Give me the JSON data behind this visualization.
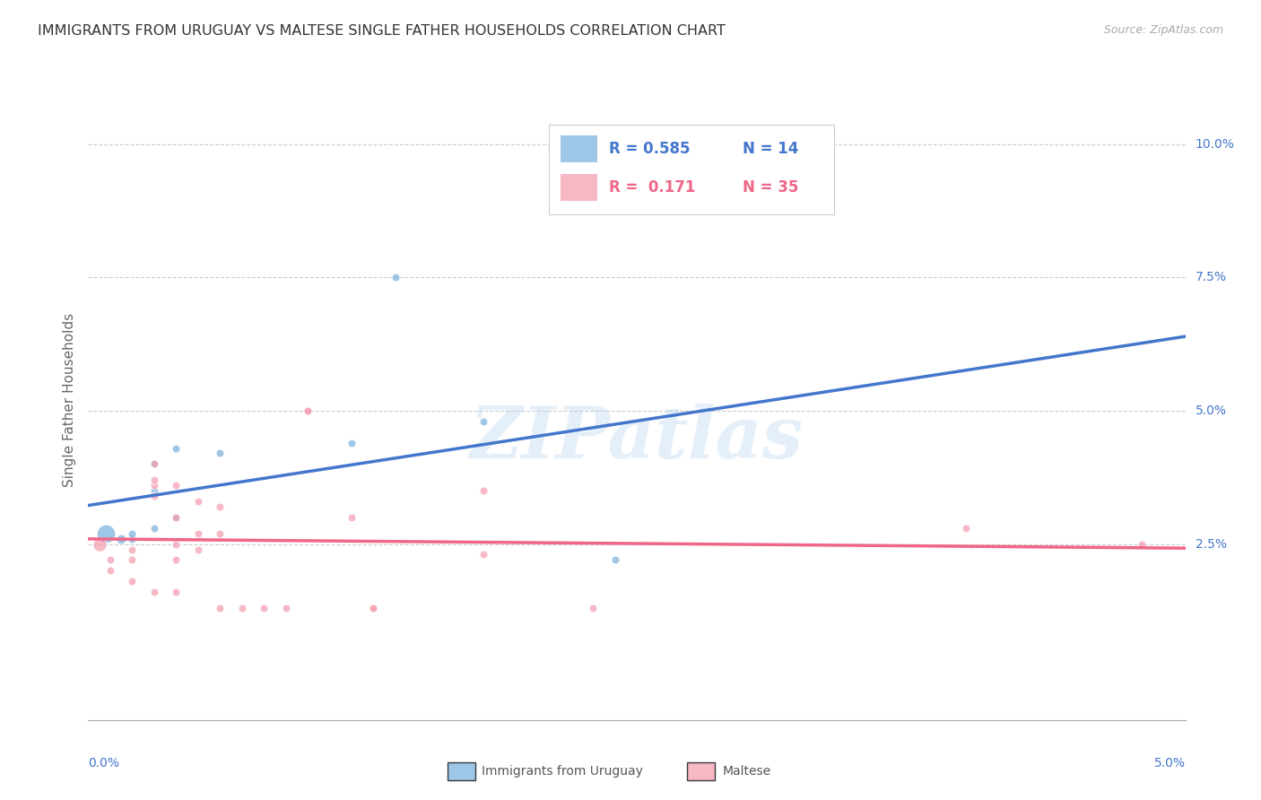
{
  "title": "IMMIGRANTS FROM URUGUAY VS MALTESE SINGLE FATHER HOUSEHOLDS CORRELATION CHART",
  "source": "Source: ZipAtlas.com",
  "ylabel": "Single Father Households",
  "legend_blue_r": "0.585",
  "legend_blue_n": "14",
  "legend_pink_r": "0.171",
  "legend_pink_n": "35",
  "watermark": "ZIPatlas",
  "blue_color": "#7EB3E0",
  "pink_color": "#F4A0B0",
  "blue_line_color": "#4477CC",
  "pink_line_color": "#EE6688",
  "dashed_line_color": "#BBDDEE",
  "blue_points": [
    [
      0.0008,
      0.027,
      220
    ],
    [
      0.0015,
      0.026,
      60
    ],
    [
      0.002,
      0.026,
      40
    ],
    [
      0.002,
      0.027,
      40
    ],
    [
      0.003,
      0.028,
      40
    ],
    [
      0.003,
      0.035,
      40
    ],
    [
      0.003,
      0.04,
      40
    ],
    [
      0.004,
      0.043,
      40
    ],
    [
      0.004,
      0.03,
      40
    ],
    [
      0.006,
      0.042,
      40
    ],
    [
      0.012,
      0.044,
      40
    ],
    [
      0.014,
      0.075,
      40
    ],
    [
      0.018,
      0.048,
      40
    ],
    [
      0.024,
      0.022,
      40
    ]
  ],
  "pink_points": [
    [
      0.0005,
      0.025,
      120
    ],
    [
      0.001,
      0.022,
      40
    ],
    [
      0.001,
      0.02,
      40
    ],
    [
      0.002,
      0.024,
      40
    ],
    [
      0.002,
      0.022,
      40
    ],
    [
      0.002,
      0.018,
      40
    ],
    [
      0.003,
      0.036,
      40
    ],
    [
      0.003,
      0.034,
      40
    ],
    [
      0.003,
      0.04,
      40
    ],
    [
      0.003,
      0.037,
      40
    ],
    [
      0.003,
      0.016,
      40
    ],
    [
      0.004,
      0.036,
      40
    ],
    [
      0.004,
      0.03,
      40
    ],
    [
      0.004,
      0.016,
      40
    ],
    [
      0.004,
      0.025,
      40
    ],
    [
      0.004,
      0.022,
      40
    ],
    [
      0.005,
      0.027,
      40
    ],
    [
      0.005,
      0.024,
      40
    ],
    [
      0.005,
      0.033,
      40
    ],
    [
      0.006,
      0.032,
      40
    ],
    [
      0.006,
      0.027,
      40
    ],
    [
      0.006,
      0.013,
      40
    ],
    [
      0.007,
      0.013,
      40
    ],
    [
      0.008,
      0.013,
      40
    ],
    [
      0.009,
      0.013,
      40
    ],
    [
      0.01,
      0.05,
      40
    ],
    [
      0.01,
      0.05,
      40
    ],
    [
      0.012,
      0.03,
      40
    ],
    [
      0.013,
      0.013,
      40
    ],
    [
      0.013,
      0.013,
      40
    ],
    [
      0.018,
      0.035,
      40
    ],
    [
      0.018,
      0.023,
      40
    ],
    [
      0.023,
      0.013,
      40
    ],
    [
      0.04,
      0.028,
      40
    ],
    [
      0.048,
      0.025,
      40
    ]
  ],
  "xlim": [
    0,
    0.05
  ],
  "ylim": [
    -0.008,
    0.112
  ],
  "ytick_vals": [
    0.0,
    0.025,
    0.05,
    0.075,
    0.1
  ],
  "ytick_labels": [
    "",
    "2.5%",
    "5.0%",
    "7.5%",
    "10.0%"
  ],
  "xtick_vals": [
    0.0,
    0.05
  ],
  "xtick_labels": [
    "0.0%",
    "5.0%"
  ]
}
